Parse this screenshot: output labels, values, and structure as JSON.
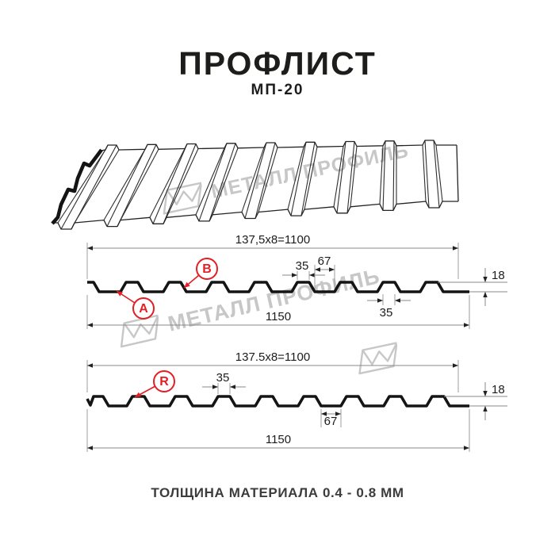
{
  "header": {
    "title": "ПРОФЛИСТ",
    "subtitle": "МП-20"
  },
  "watermark": {
    "text": "МЕТАЛЛ ПРОФИЛЬ",
    "color": "#c7c7c7"
  },
  "profile_front": {
    "modules": "137,5x8=1100",
    "rib_top": "35",
    "valley": "67",
    "height": "18",
    "rib_top_2": "35",
    "total_width": "1150",
    "label_a": "A",
    "label_b": "B"
  },
  "profile_reverse": {
    "modules": "137.5x8=1100",
    "rib_top": "35",
    "valley": "67",
    "height": "18",
    "total_width": "1150",
    "label_r": "R"
  },
  "footer": {
    "note": "ТОЛЩИНА МАТЕРИАЛА 0.4 - 0.8 ММ"
  },
  "colors": {
    "accent_red": "#e31e24",
    "drawing_line": "#141414",
    "dim_text": "#1c1c1c",
    "watermark_gray": "#c7c7c7",
    "background": "#ffffff"
  }
}
